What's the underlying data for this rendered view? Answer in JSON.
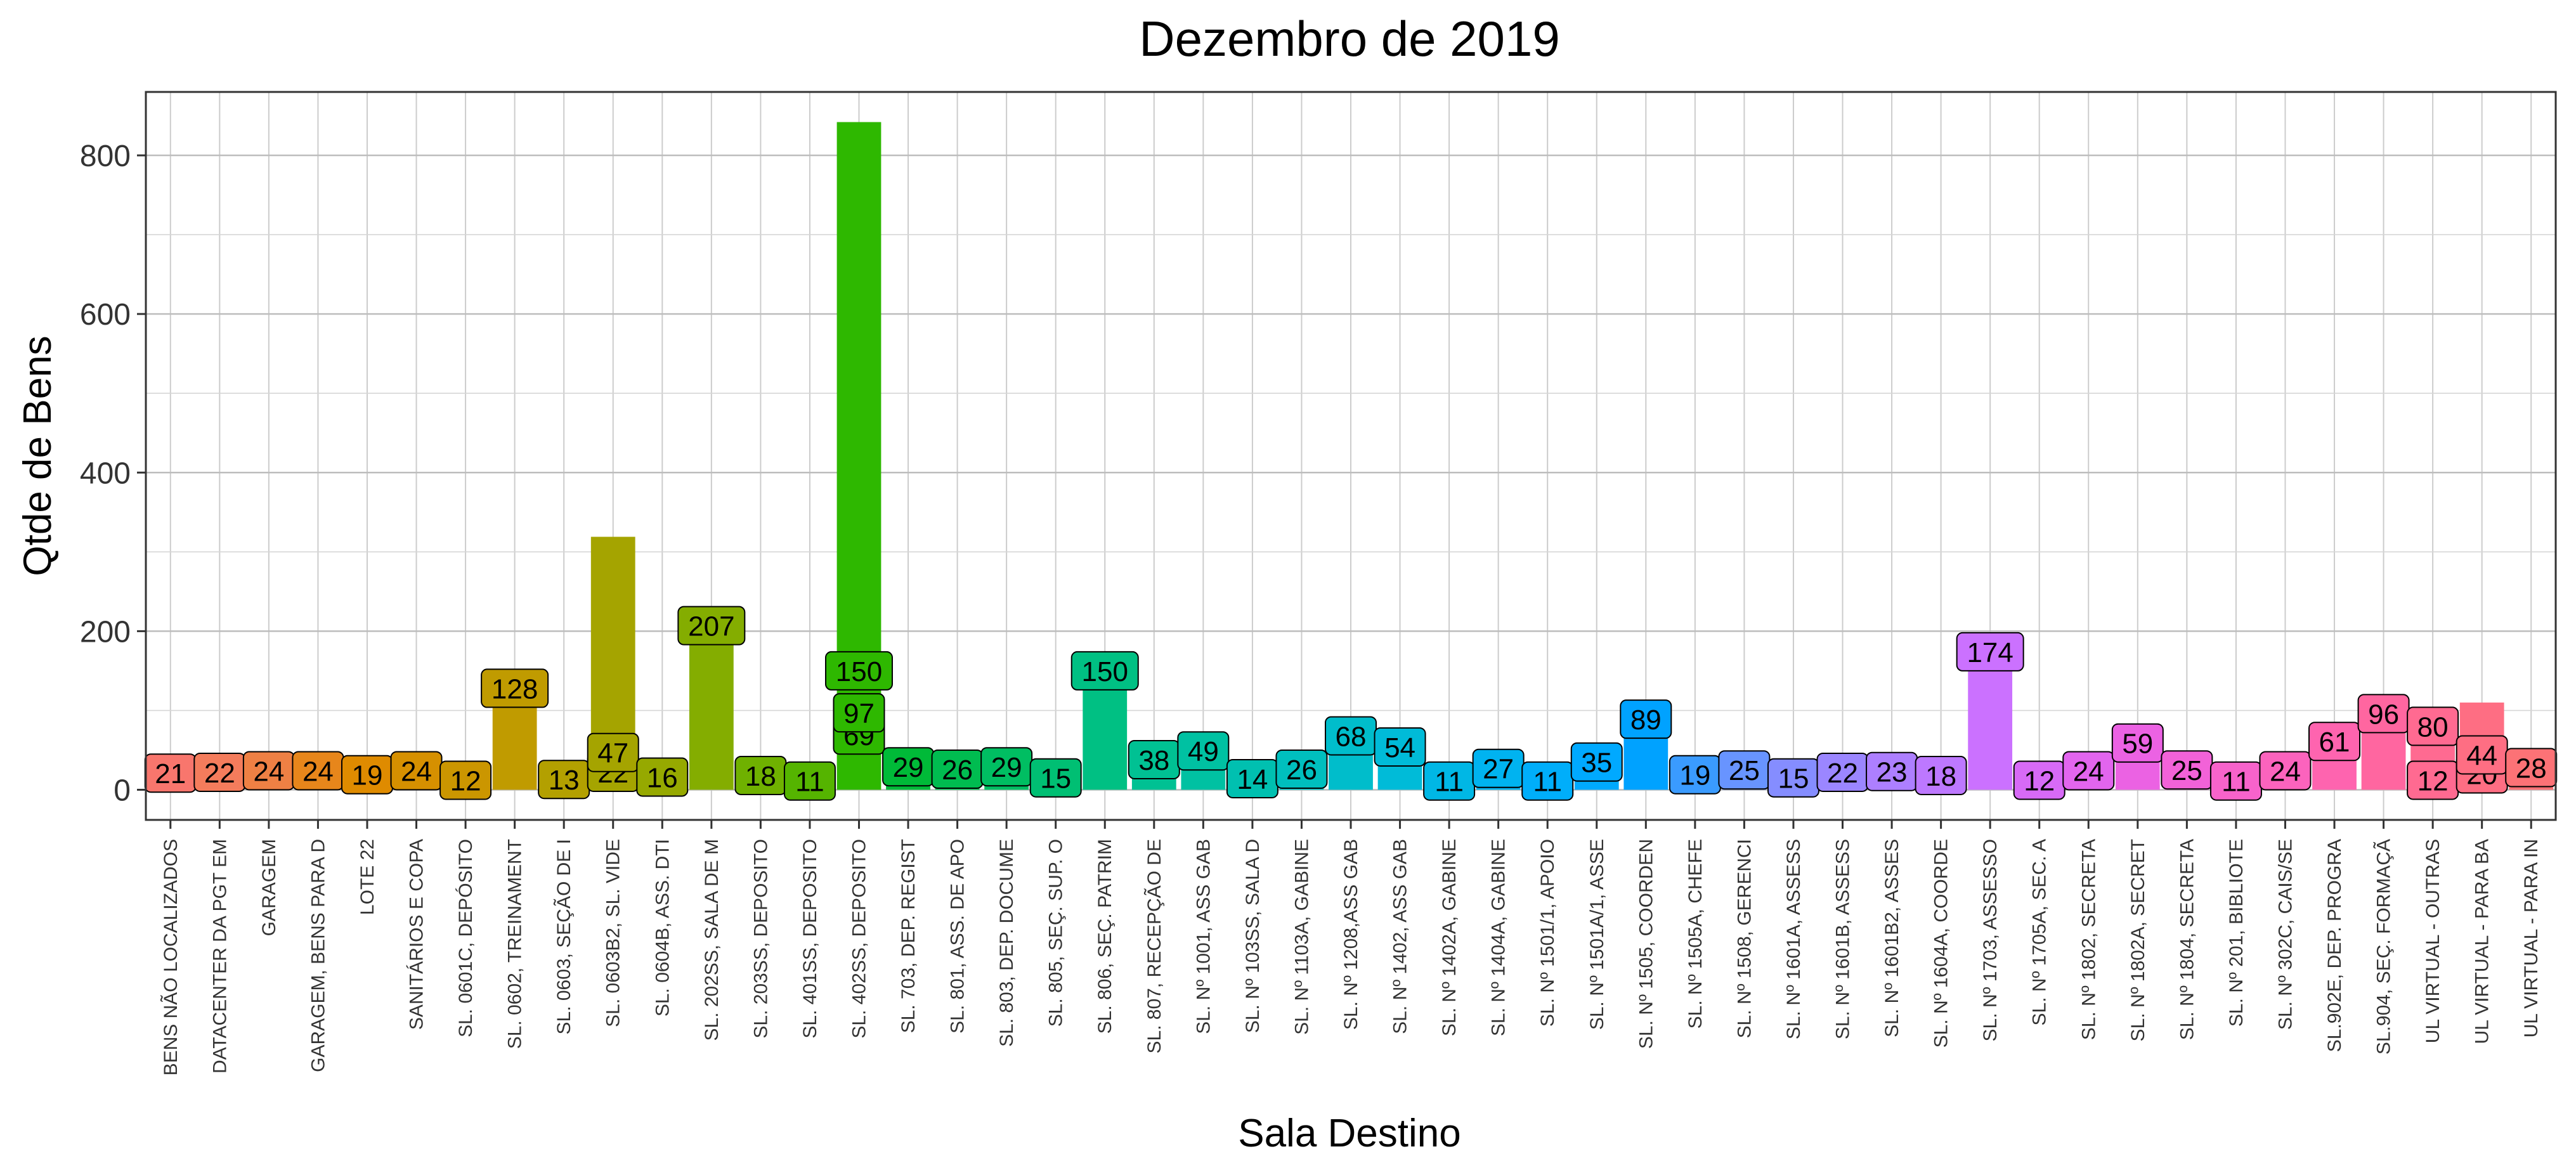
{
  "chart_data": {
    "type": "bar",
    "title": "Dezembro  de  2019",
    "xlabel": "Sala Destino",
    "ylabel": "Qtde de Bens",
    "ylim": [
      -38,
      880
    ],
    "yticks": [
      0,
      200,
      400,
      600,
      800
    ],
    "grid": true,
    "legend": "none",
    "categories": [
      "BENS NÃO LOCALIZADOS",
      "DATACENTER DA PGT EM",
      "GARAGEM",
      "GARAGEM, BENS PARA D",
      "LOTE 22",
      "SANITÁRIOS E COPA",
      "SL. 0601C, DEPÓSITO",
      "SL. 0602, TREINAMENT",
      "SL. 0603, SEÇÃO DE I",
      "SL. 0603B2, SL. VIDE",
      "SL. 0604B, ASS. DTI",
      "SL. 202SS, SALA DE M",
      "SL. 203SS, DEPOSITO",
      "SL. 401SS, DEPOSITO",
      "SL. 402SS, DEPOSITO",
      "SL. 703, DEP. REGIST",
      "SL. 801, ASS. DE APO",
      "SL. 803, DEP. DOCUME",
      "SL. 805, SEÇ. SUP. O",
      "SL. 806, SEÇ. PATRIM",
      "SL. 807, RECEPÇÃO DE",
      "SL. Nº 1001, ASS GAB",
      "SL. Nº 103SS, SALA D",
      "SL. Nº 1103A, GABINE",
      "SL. Nº 1208,ASS GAB",
      "SL. Nº 1402, ASS GAB",
      "SL. Nº 1402A, GABINE",
      "SL. Nº 1404A, GABINE",
      "SL. Nº 1501/1, APOIO",
      "SL. Nº 1501A/1, ASSE",
      "SL. Nº 1505, COORDEN",
      "SL. Nº 1505A, CHEFE",
      "SL. Nº 1508, GERENCI",
      "SL. Nº 1601A, ASSESS",
      "SL. Nº 1601B, ASSESS",
      "SL. Nº 1601B2, ASSES",
      "SL. Nº 1604A, COORDE",
      "SL. Nº 1703, ASSESSO",
      "SL. Nº 1705A, SEC. A",
      "SL. Nº 1802, SECRETA",
      "SL. Nº 1802A, SECRET",
      "SL. Nº 1804, SECRETA",
      "SL. Nº 201, BIBLIOTE",
      "SL. Nº 302C, CAIS/SE",
      "SL.902E, DEP. PROGRA",
      "SL.904, SEÇ. FORMAÇÃ",
      "UL VIRTUAL - OUTRAS",
      "UL VIRTUAL - PARA BA",
      "UL VIRTUAL - PARA IN"
    ],
    "colors": [
      "#F8766D",
      "#F47C5C",
      "#EE8044",
      "#E7861B",
      "#DF8B00",
      "#D69000",
      "#CB9600",
      "#C09B00",
      "#B3A000",
      "#A5A400",
      "#96A900",
      "#84AD00",
      "#6FB100",
      "#55B400",
      "#2EB800",
      "#00BA38",
      "#00BC50",
      "#00BE62",
      "#00BF73",
      "#00C083",
      "#00C193",
      "#00C1A2",
      "#00C0B0",
      "#00BFBE",
      "#00BDCB",
      "#00BBD8",
      "#00B7E5",
      "#00B3F0",
      "#00AEFA",
      "#00A9FF",
      "#00A2FF",
      "#3A9BFF",
      "#6894FF",
      "#858DFF",
      "#9B86FF",
      "#AD7FFF",
      "#BD78FF",
      "#CB71FF",
      "#D76AF6",
      "#E265EE",
      "#EB62E3",
      "#F262D8",
      "#F763CB",
      "#FB63BD",
      "#FE64AF",
      "#FF66A0",
      "#FF6A91",
      "#FE6E83",
      "#FC7276"
    ],
    "bars": [
      {
        "total": 21,
        "labels": [
          21
        ]
      },
      {
        "total": 22,
        "labels": [
          22
        ]
      },
      {
        "total": 24,
        "labels": [
          24
        ]
      },
      {
        "total": 24,
        "labels": [
          24
        ]
      },
      {
        "total": 19,
        "labels": [
          19
        ]
      },
      {
        "total": 24,
        "labels": [
          24
        ]
      },
      {
        "total": 12,
        "labels": [
          12
        ]
      },
      {
        "total": 128,
        "labels": [
          128
        ]
      },
      {
        "total": 13,
        "labels": [
          13
        ]
      },
      {
        "total": 319,
        "labels": [
          22,
          47
        ]
      },
      {
        "total": 16,
        "labels": [
          16
        ]
      },
      {
        "total": 207,
        "labels": [
          207
        ]
      },
      {
        "total": 18,
        "labels": [
          18
        ]
      },
      {
        "total": 11,
        "labels": [
          11
        ]
      },
      {
        "total": 842,
        "labels": [
          69,
          97,
          150
        ]
      },
      {
        "total": 29,
        "labels": [
          29
        ]
      },
      {
        "total": 26,
        "labels": [
          26
        ]
      },
      {
        "total": 29,
        "labels": [
          29
        ]
      },
      {
        "total": 15,
        "labels": [
          15
        ]
      },
      {
        "total": 150,
        "labels": [
          150
        ]
      },
      {
        "total": 38,
        "labels": [
          38
        ]
      },
      {
        "total": 49,
        "labels": [
          49
        ]
      },
      {
        "total": 14,
        "labels": [
          14
        ]
      },
      {
        "total": 26,
        "labels": [
          26
        ]
      },
      {
        "total": 68,
        "labels": [
          68
        ]
      },
      {
        "total": 54,
        "labels": [
          54
        ]
      },
      {
        "total": 11,
        "labels": [
          11
        ]
      },
      {
        "total": 27,
        "labels": [
          27
        ]
      },
      {
        "total": 11,
        "labels": [
          11
        ]
      },
      {
        "total": 35,
        "labels": [
          35
        ]
      },
      {
        "total": 89,
        "labels": [
          89
        ]
      },
      {
        "total": 19,
        "labels": [
          19
        ]
      },
      {
        "total": 25,
        "labels": [
          25
        ]
      },
      {
        "total": 15,
        "labels": [
          15
        ]
      },
      {
        "total": 22,
        "labels": [
          22
        ]
      },
      {
        "total": 23,
        "labels": [
          23
        ]
      },
      {
        "total": 18,
        "labels": [
          18
        ]
      },
      {
        "total": 174,
        "labels": [
          174
        ]
      },
      {
        "total": 12,
        "labels": [
          12
        ]
      },
      {
        "total": 24,
        "labels": [
          24
        ]
      },
      {
        "total": 59,
        "labels": [
          59
        ]
      },
      {
        "total": 25,
        "labels": [
          25
        ]
      },
      {
        "total": 11,
        "labels": [
          11
        ]
      },
      {
        "total": 24,
        "labels": [
          24
        ]
      },
      {
        "total": 61,
        "labels": [
          61
        ]
      },
      {
        "total": 96,
        "labels": [
          96
        ]
      },
      {
        "total": 80,
        "labels": [
          12,
          80
        ]
      },
      {
        "total": 110,
        "labels": [
          20,
          44
        ]
      },
      {
        "total": 28,
        "labels": [
          28
        ]
      }
    ]
  }
}
